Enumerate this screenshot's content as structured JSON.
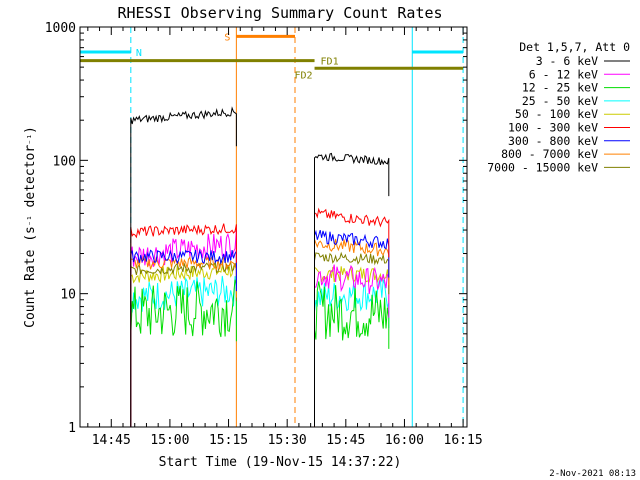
{
  "chart_data": {
    "type": "line",
    "title": "RHESSI Observing Summary Count Rates",
    "xlabel": "Start Time (19-Nov-15 14:37:22)",
    "ylabel": "Count Rate (s⁻¹ detector⁻¹)",
    "yscale": "log",
    "ylim": [
      1,
      1000
    ],
    "xlim_min": [
      0,
      99
    ],
    "x_ticks": [
      {
        "min": 8,
        "label": "14:45"
      },
      {
        "min": 23,
        "label": "15:00"
      },
      {
        "min": 38,
        "label": "15:15"
      },
      {
        "min": 53,
        "label": "15:30"
      },
      {
        "min": 68,
        "label": "15:45"
      },
      {
        "min": 83,
        "label": "16:00"
      },
      {
        "min": 98,
        "label": "16:15"
      }
    ],
    "y_ticks": [
      {
        "value": 1,
        "label": "1"
      },
      {
        "value": 10,
        "label": "10"
      },
      {
        "value": 100,
        "label": "100"
      },
      {
        "value": 1000,
        "label": "1000"
      }
    ],
    "legend_title": "Det 1,5,7, Att 0",
    "legend_position": "right",
    "segments": [
      [
        13,
        40
      ],
      [
        60,
        79
      ]
    ],
    "series": [
      {
        "name": "3 - 6 keV",
        "color": "#000000",
        "values": [
          [
            200,
            232
          ],
          [
            108,
            98
          ]
        ],
        "noise": 0.03
      },
      {
        "name": "6 - 12 keV",
        "color": "#ff00ff",
        "values": [
          [
            19,
            24
          ],
          [
            14,
            12
          ]
        ],
        "noise": 0.1
      },
      {
        "name": "12 - 25 keV",
        "color": "#00dd00",
        "values": [
          [
            7,
            8
          ],
          [
            7.5,
            7
          ]
        ],
        "noise": 0.22
      },
      {
        "name": "25 - 50 keV",
        "color": "#00ffff",
        "values": [
          [
            9.5,
            10.5
          ],
          [
            9.5,
            10
          ]
        ],
        "noise": 0.12
      },
      {
        "name": "50 - 100 keV",
        "color": "#cccc00",
        "values": [
          [
            13.5,
            15
          ],
          [
            14,
            14
          ]
        ],
        "noise": 0.06
      },
      {
        "name": "100 - 300 keV",
        "color": "#ff0000",
        "values": [
          [
            29,
            31
          ],
          [
            40,
            34
          ]
        ],
        "noise": 0.04
      },
      {
        "name": "300 - 800 keV",
        "color": "#0000ff",
        "values": [
          [
            19,
            19
          ],
          [
            27,
            24
          ]
        ],
        "noise": 0.05
      },
      {
        "name": "800 - 7000 keV",
        "color": "#ff8000",
        "values": [
          [
            17,
            17
          ],
          [
            24,
            21
          ]
        ],
        "noise": 0.05
      },
      {
        "name": "7000 - 15000 keV",
        "color": "#808000",
        "values": [
          [
            15,
            16
          ],
          [
            19,
            18
          ]
        ],
        "noise": 0.04
      }
    ],
    "flags": {
      "night": {
        "label": "N",
        "color": "#00e5ff",
        "level": 650,
        "intervals": [
          [
            0,
            13
          ],
          [
            85,
            98
          ]
        ]
      },
      "saa": {
        "label": "S",
        "color": "#ff7f00",
        "level": 850,
        "intervals": [
          [
            40,
            55
          ]
        ]
      },
      "fd1": {
        "label": "FD1",
        "color": "#808000",
        "level": 560,
        "intervals": [
          [
            0,
            60
          ]
        ]
      },
      "fd2": {
        "label": "FD2",
        "color": "#808000",
        "level": 490,
        "intervals": [
          [
            60,
            98
          ]
        ]
      }
    },
    "vlines": [
      {
        "min": 0,
        "color": "#00e5ff",
        "style": "solid"
      },
      {
        "min": 13,
        "color": "#00e5ff",
        "style": "dashed"
      },
      {
        "min": 40,
        "color": "#ff7f00",
        "style": "solid"
      },
      {
        "min": 55,
        "color": "#ff7f00",
        "style": "dashed"
      },
      {
        "min": 85,
        "color": "#00e5ff",
        "style": "solid"
      },
      {
        "min": 98,
        "color": "#00e5ff",
        "style": "dashed"
      }
    ]
  },
  "footer": {
    "timestamp": "2-Nov-2021 08:13"
  }
}
